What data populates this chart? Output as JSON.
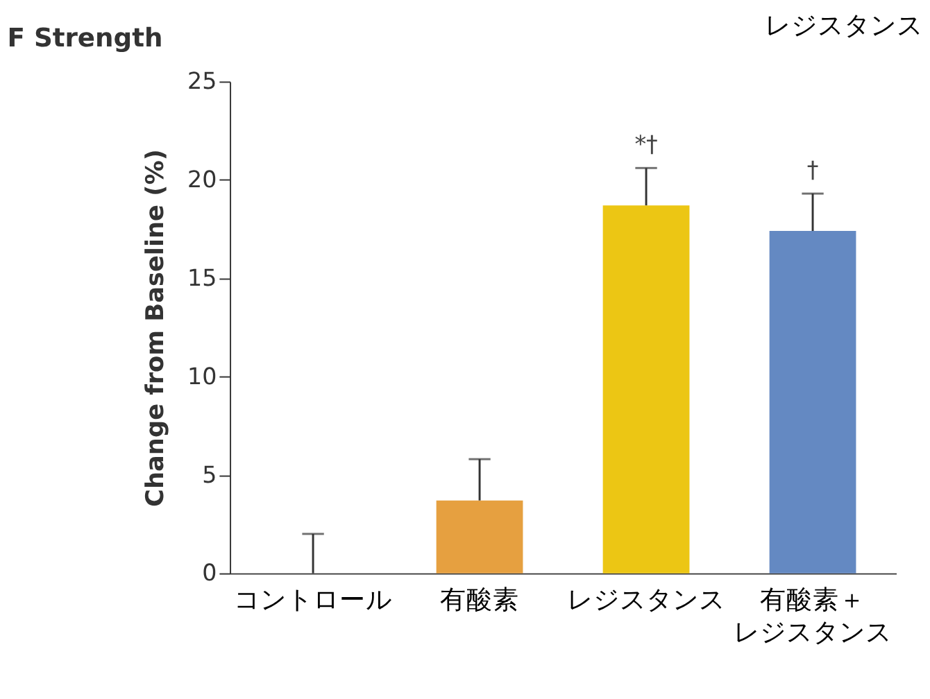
{
  "chart_data": {
    "type": "bar",
    "title": "F  Strength",
    "ylabel": "Change from Baseline (%)",
    "categories": [
      "コントロール",
      "有酸素",
      "レジスタンス",
      "有酸素＋レジスタンス"
    ],
    "values": [
      0,
      3.7,
      18.7,
      17.4
    ],
    "colors": [
      "#e6a040",
      "#e6a040",
      "#ecc614",
      "#6489c2"
    ],
    "errors": [
      [
        0,
        2.0
      ],
      [
        3.7,
        5.8
      ],
      [
        18.7,
        20.6
      ],
      [
        17.4,
        19.3
      ]
    ],
    "ylim": [
      0,
      25
    ],
    "yticks": [
      0,
      5,
      10,
      15,
      20,
      25
    ],
    "grid": false,
    "annotations": [
      {
        "text": "*†",
        "x": "レジスタンス",
        "y": 20.6
      },
      {
        "text": "†",
        "x": "有酸素＋レジスタンス",
        "y": 19.3
      },
      "レジスタンス"
    ]
  }
}
